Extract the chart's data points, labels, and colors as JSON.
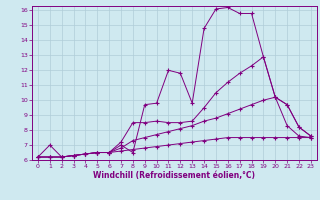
{
  "title": "",
  "xlabel": "Windchill (Refroidissement éolien,°C)",
  "ylabel": "",
  "xlim": [
    -0.5,
    23.5
  ],
  "ylim": [
    6,
    16.3
  ],
  "yticks": [
    6,
    7,
    8,
    9,
    10,
    11,
    12,
    13,
    14,
    15,
    16
  ],
  "xticks": [
    0,
    1,
    2,
    3,
    4,
    5,
    6,
    7,
    8,
    9,
    10,
    11,
    12,
    13,
    14,
    15,
    16,
    17,
    18,
    19,
    20,
    21,
    22,
    23
  ],
  "bg_color": "#cfe9f0",
  "line_color": "#800080",
  "grid_color": "#b0cdd8",
  "lines": [
    {
      "x": [
        0,
        1,
        2,
        3,
        4,
        5,
        6,
        7,
        8,
        9,
        10,
        11,
        12,
        13,
        14,
        15,
        16,
        17,
        18,
        19,
        20,
        21,
        22,
        23
      ],
      "y": [
        6.2,
        7.0,
        6.2,
        6.3,
        6.4,
        6.5,
        6.5,
        7.0,
        6.5,
        9.7,
        9.8,
        12.0,
        11.8,
        9.8,
        14.8,
        16.1,
        16.2,
        15.8,
        15.8,
        12.9,
        10.2,
        9.7,
        8.2,
        7.6
      ]
    },
    {
      "x": [
        0,
        1,
        2,
        3,
        4,
        5,
        6,
        7,
        8,
        9,
        10,
        11,
        12,
        13,
        14,
        15,
        16,
        17,
        18,
        19,
        20,
        21,
        22,
        23
      ],
      "y": [
        6.2,
        6.2,
        6.2,
        6.3,
        6.4,
        6.5,
        6.5,
        7.2,
        8.5,
        8.5,
        8.6,
        8.5,
        8.5,
        8.6,
        9.5,
        10.5,
        11.2,
        11.8,
        12.3,
        12.9,
        10.2,
        9.7,
        8.2,
        7.6
      ]
    },
    {
      "x": [
        0,
        1,
        2,
        3,
        4,
        5,
        6,
        7,
        8,
        9,
        10,
        11,
        12,
        13,
        14,
        15,
        16,
        17,
        18,
        19,
        20,
        21,
        22,
        23
      ],
      "y": [
        6.2,
        6.2,
        6.2,
        6.3,
        6.4,
        6.5,
        6.5,
        6.8,
        7.3,
        7.5,
        7.7,
        7.9,
        8.1,
        8.3,
        8.6,
        8.8,
        9.1,
        9.4,
        9.7,
        10.0,
        10.2,
        8.3,
        7.6,
        7.5
      ]
    },
    {
      "x": [
        0,
        1,
        2,
        3,
        4,
        5,
        6,
        7,
        8,
        9,
        10,
        11,
        12,
        13,
        14,
        15,
        16,
        17,
        18,
        19,
        20,
        21,
        22,
        23
      ],
      "y": [
        6.2,
        6.2,
        6.2,
        6.3,
        6.4,
        6.5,
        6.5,
        6.6,
        6.7,
        6.8,
        6.9,
        7.0,
        7.1,
        7.2,
        7.3,
        7.4,
        7.5,
        7.5,
        7.5,
        7.5,
        7.5,
        7.5,
        7.5,
        7.5
      ]
    }
  ]
}
